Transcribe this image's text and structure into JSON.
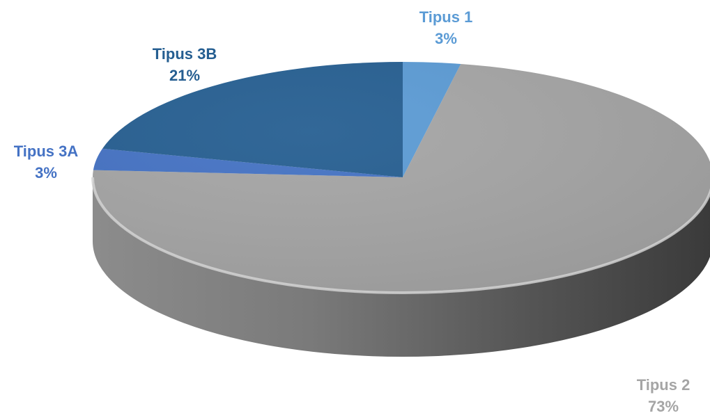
{
  "chart_data": {
    "type": "pie",
    "style": "3d",
    "title": "",
    "slices": [
      {
        "name": "Tipus 1",
        "value": 3,
        "pct_label": "3%",
        "color": "#5b9bd5",
        "label_color": "#5b9bd5"
      },
      {
        "name": "Tipus 2",
        "value": 73,
        "pct_label": "73%",
        "color": "#a5a5a5",
        "label_color": "#a5a5a5"
      },
      {
        "name": "Tipus 3A",
        "value": 3,
        "pct_label": "3%",
        "color": "#4472c4",
        "label_color": "#4472c4"
      },
      {
        "name": "Tipus 3B",
        "value": 21,
        "pct_label": "21%",
        "color": "#255e91",
        "label_color": "#255e91"
      }
    ]
  }
}
